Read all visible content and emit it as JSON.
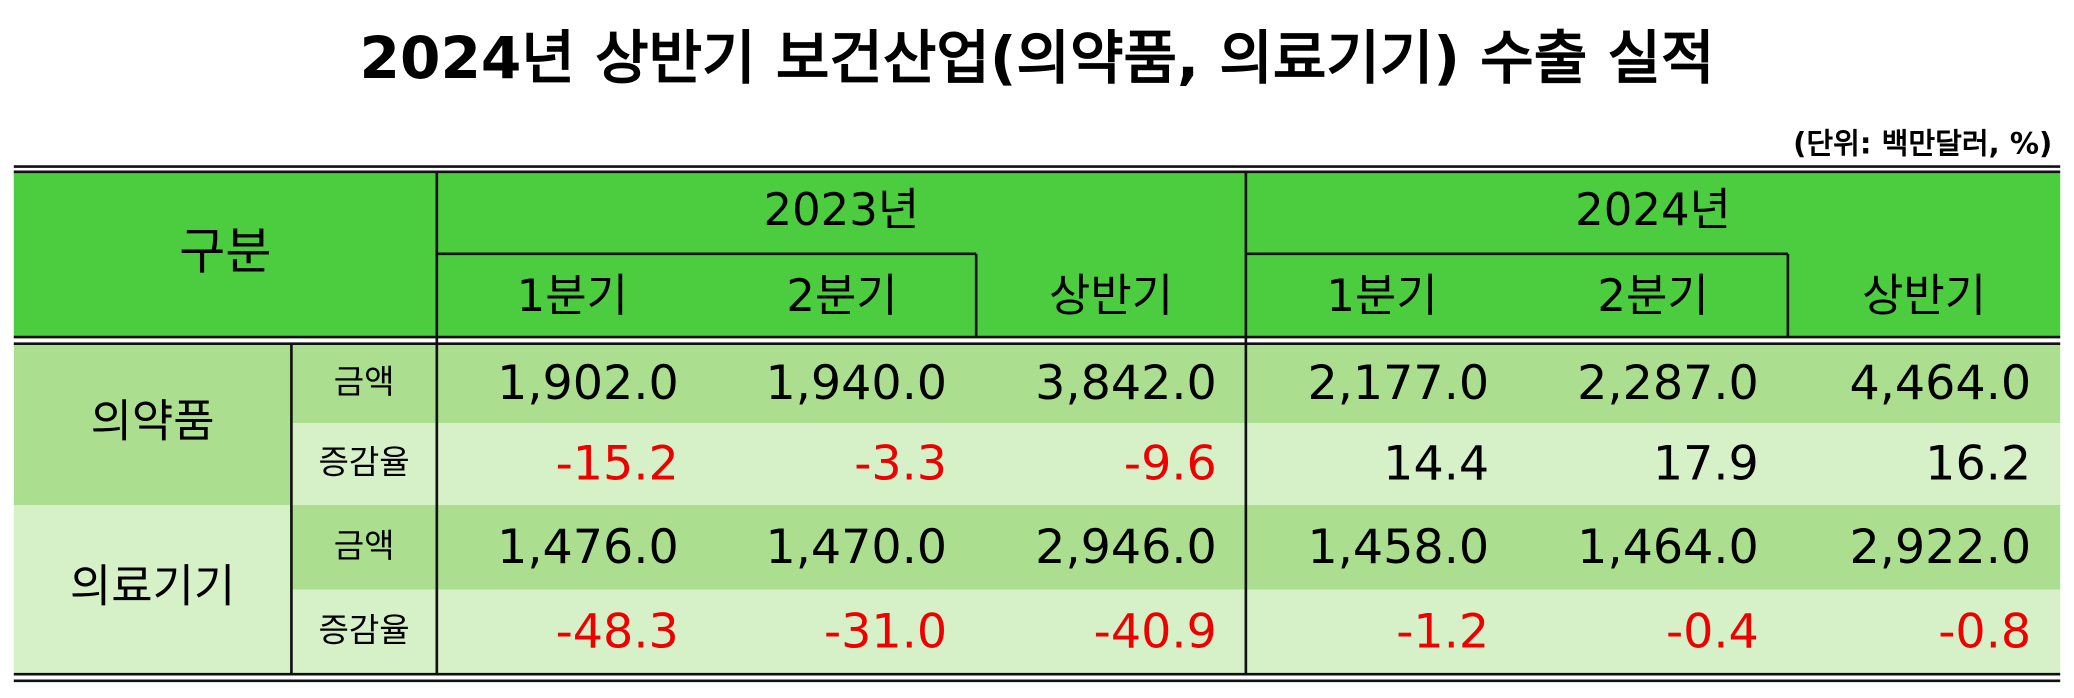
{
  "title": "2024년 상반기 보건산업(의약품, 의료기기) 수출 실적",
  "unit": "(단위: 백만달러, %)",
  "table": {
    "header": {
      "category": "구분",
      "years": [
        "2023년",
        "2024년"
      ],
      "periods": [
        "1분기",
        "2분기",
        "상반기",
        "1분기",
        "2분기",
        "상반기"
      ]
    },
    "groups": [
      {
        "name": "의약품",
        "rows": [
          {
            "label": "금액",
            "values": [
              "1,902.0",
              "1,940.0",
              "3,842.0",
              "2,177.0",
              "2,287.0",
              "4,464.0"
            ]
          },
          {
            "label": "증감율",
            "values": [
              "-15.2",
              "-3.3",
              "-9.6",
              "14.4",
              "17.9",
              "16.2"
            ]
          }
        ]
      },
      {
        "name": "의료기기",
        "rows": [
          {
            "label": "금액",
            "values": [
              "1,476.0",
              "1,470.0",
              "2,946.0",
              "1,458.0",
              "1,464.0",
              "2,922.0"
            ]
          },
          {
            "label": "증감율",
            "values": [
              "-48.3",
              "-31.0",
              "-40.9",
              "-1.2",
              "-0.4",
              "-0.8"
            ]
          }
        ]
      }
    ]
  }
}
